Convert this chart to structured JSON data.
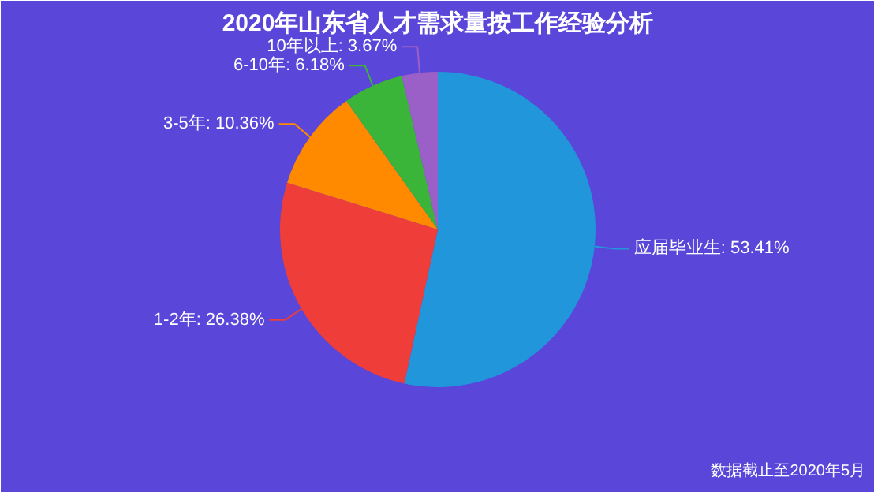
{
  "chart_data": {
    "type": "pie",
    "title": "2020年山东省人才需求量按工作经验分析",
    "categories": [
      "应届毕业生",
      "1-2年",
      "3-5年",
      "6-10年",
      "10年以上"
    ],
    "values": [
      53.41,
      26.38,
      10.36,
      6.18,
      3.67
    ],
    "value_labels": [
      "53.41%",
      "26.38%",
      "10.36%",
      "6.18%",
      "3.67%"
    ],
    "colors": [
      "#2196db",
      "#ef3e3a",
      "#ff8a00",
      "#3ab53a",
      "#9b5fc8"
    ],
    "annotations": [
      "数据截止至2020年5月"
    ]
  }
}
